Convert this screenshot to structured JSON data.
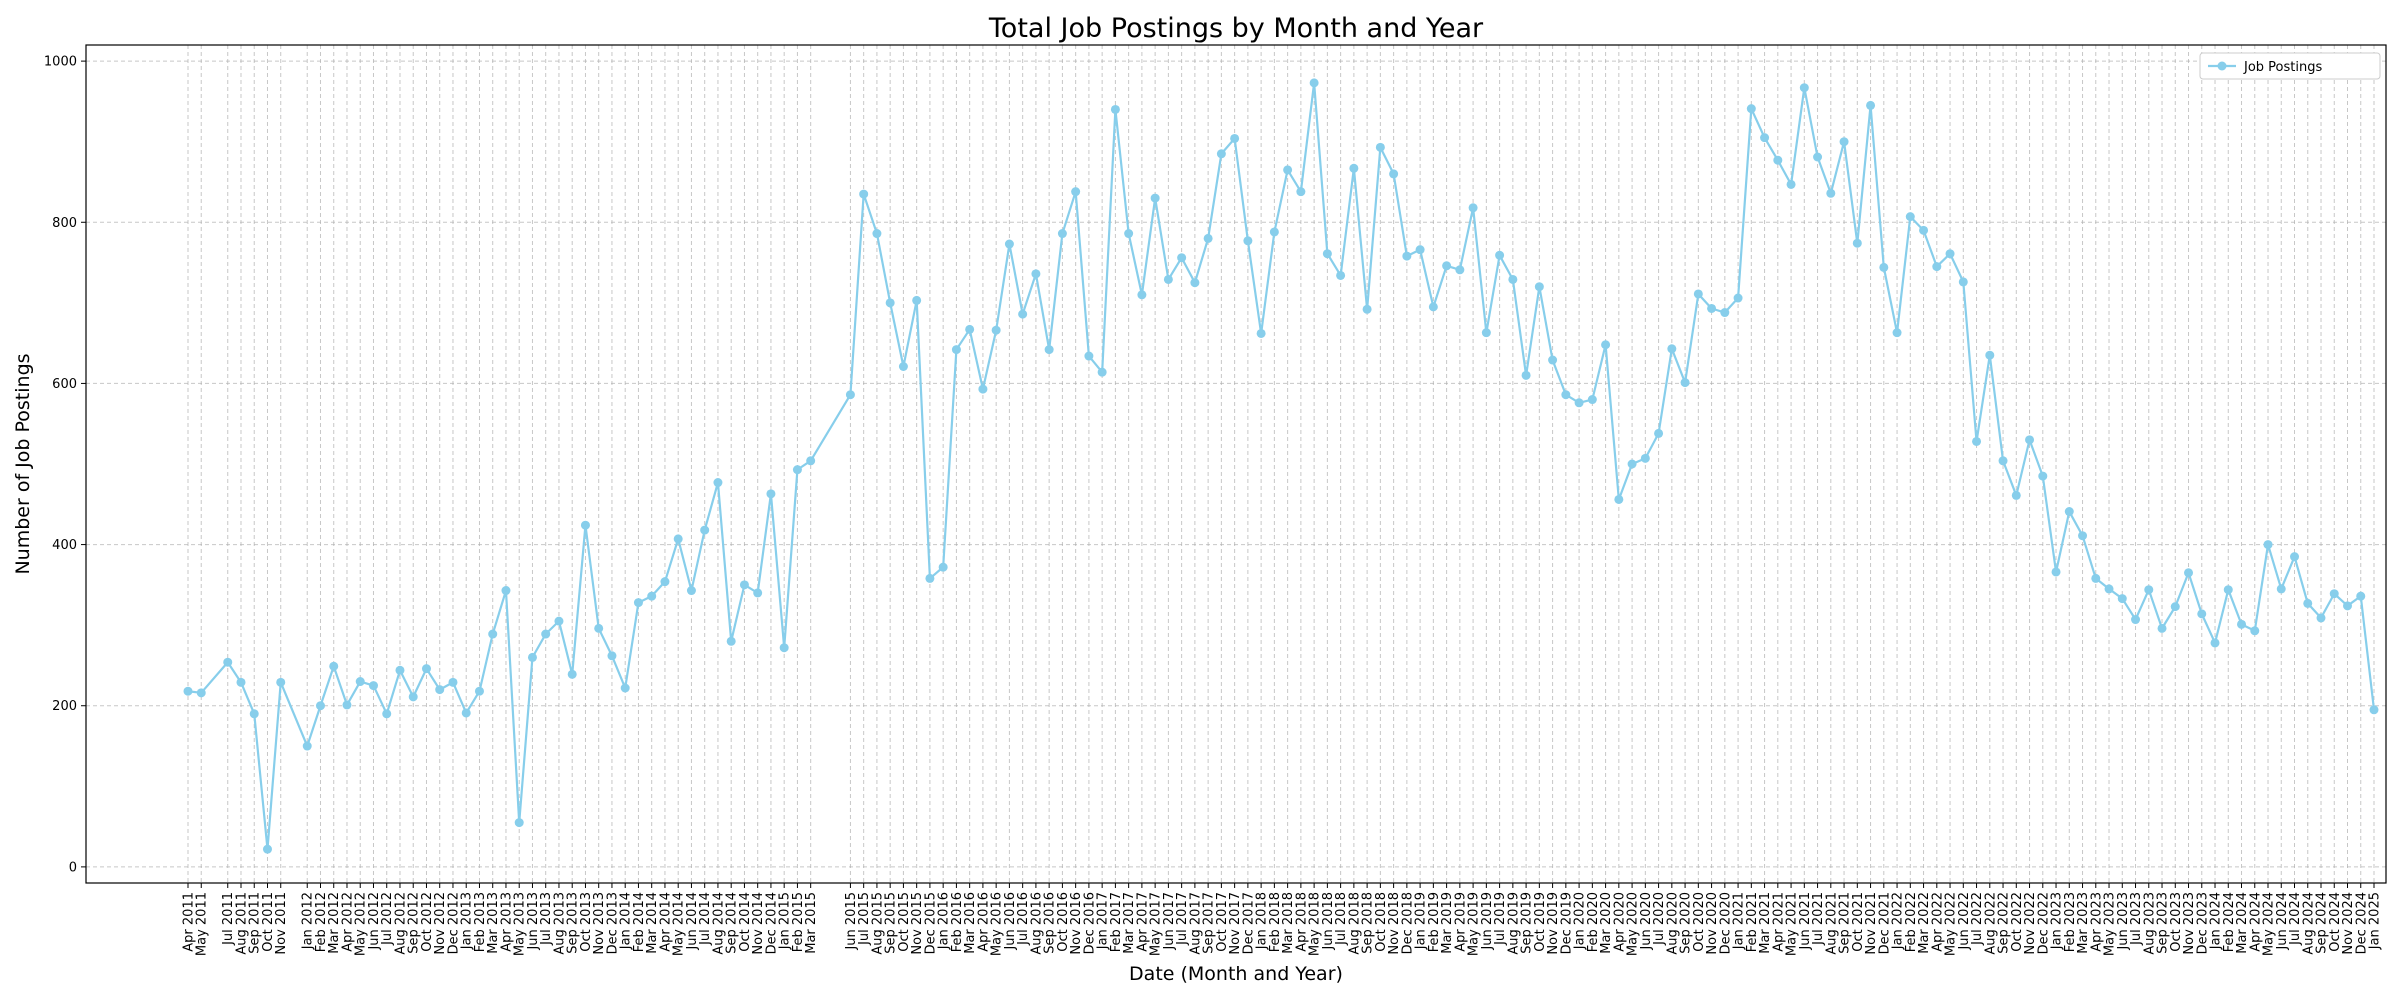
{
  "chart_data": {
    "type": "line",
    "title": "Total Job Postings by Month and Year",
    "xlabel": "Date (Month and Year)",
    "ylabel": "Number of Job Postings",
    "ylim": [
      -20,
      1020
    ],
    "yticks": [
      0,
      200,
      400,
      600,
      800,
      1000
    ],
    "grid": true,
    "legend_position": "top-right",
    "colors": {
      "line": "#87ceeb",
      "axis": "#000000",
      "grid": "#b0b0b0"
    },
    "series": [
      {
        "name": "Job Postings",
        "x": [
          "Apr 2011",
          "May 2011",
          "Jul 2011",
          "Aug 2011",
          "Sep 2011",
          "Oct 2011",
          "Nov 2011",
          "Jan 2012",
          "Feb 2012",
          "Mar 2012",
          "Apr 2012",
          "May 2012",
          "Jun 2012",
          "Jul 2012",
          "Aug 2012",
          "Sep 2012",
          "Oct 2012",
          "Nov 2012",
          "Dec 2012",
          "Jan 2013",
          "Feb 2013",
          "Mar 2013",
          "Apr 2013",
          "May 2013",
          "Jun 2013",
          "Jul 2013",
          "Aug 2013",
          "Sep 2013",
          "Oct 2013",
          "Nov 2013",
          "Dec 2013",
          "Jan 2014",
          "Feb 2014",
          "Mar 2014",
          "Apr 2014",
          "May 2014",
          "Jun 2014",
          "Jul 2014",
          "Aug 2014",
          "Sep 2014",
          "Oct 2014",
          "Nov 2014",
          "Dec 2014",
          "Jan 2015",
          "Feb 2015",
          "Mar 2015",
          "Jun 2015",
          "Jul 2015",
          "Aug 2015",
          "Sep 2015",
          "Oct 2015",
          "Nov 2015",
          "Dec 2015",
          "Jan 2016",
          "Feb 2016",
          "Mar 2016",
          "Apr 2016",
          "May 2016",
          "Jun 2016",
          "Jul 2016",
          "Aug 2016",
          "Sep 2016",
          "Oct 2016",
          "Nov 2016",
          "Dec 2016",
          "Jan 2017",
          "Feb 2017",
          "Mar 2017",
          "Apr 2017",
          "May 2017",
          "Jun 2017",
          "Jul 2017",
          "Aug 2017",
          "Sep 2017",
          "Oct 2017",
          "Nov 2017",
          "Dec 2017",
          "Jan 2018",
          "Feb 2018",
          "Mar 2018",
          "Apr 2018",
          "May 2018",
          "Jun 2018",
          "Jul 2018",
          "Aug 2018",
          "Sep 2018",
          "Oct 2018",
          "Nov 2018",
          "Dec 2018",
          "Jan 2019",
          "Feb 2019",
          "Mar 2019",
          "Apr 2019",
          "May 2019",
          "Jun 2019",
          "Jul 2019",
          "Aug 2019",
          "Sep 2019",
          "Oct 2019",
          "Nov 2019",
          "Dec 2019",
          "Jan 2020",
          "Feb 2020",
          "Mar 2020",
          "Apr 2020",
          "May 2020",
          "Jun 2020",
          "Jul 2020",
          "Aug 2020",
          "Sep 2020",
          "Oct 2020",
          "Nov 2020",
          "Dec 2020",
          "Jan 2021",
          "Feb 2021",
          "Mar 2021",
          "Apr 2021",
          "May 2021",
          "Jun 2021",
          "Jul 2021",
          "Aug 2021",
          "Sep 2021",
          "Oct 2021",
          "Nov 2021",
          "Dec 2021",
          "Jan 2022",
          "Feb 2022",
          "Mar 2022",
          "Apr 2022",
          "May 2022",
          "Jun 2022",
          "Jul 2022",
          "Aug 2022",
          "Sep 2022",
          "Oct 2022",
          "Nov 2022",
          "Dec 2022",
          "Jan 2023",
          "Feb 2023",
          "Mar 2023",
          "Apr 2023",
          "May 2023",
          "Jun 2023",
          "Jul 2023",
          "Aug 2023",
          "Sep 2023",
          "Oct 2023",
          "Nov 2023",
          "Dec 2023",
          "Jan 2024",
          "Feb 2024",
          "Mar 2024",
          "Apr 2024",
          "May 2024",
          "Jun 2024",
          "Jul 2024",
          "Aug 2024",
          "Sep 2024",
          "Oct 2024",
          "Nov 2024",
          "Dec 2024",
          "Jan 2025"
        ],
        "y": [
          218,
          216,
          254,
          229,
          190,
          22,
          229,
          150,
          200,
          249,
          201,
          230,
          225,
          190,
          244,
          211,
          246,
          220,
          229,
          191,
          218,
          289,
          343,
          55,
          260,
          289,
          305,
          239,
          424,
          296,
          262,
          222,
          328,
          336,
          354,
          407,
          343,
          418,
          477,
          280,
          350,
          340,
          463,
          272,
          493,
          504,
          586,
          835,
          786,
          700,
          621,
          703,
          358,
          372,
          642,
          667,
          593,
          666,
          773,
          686,
          736,
          642,
          786,
          838,
          634,
          614,
          940,
          786,
          710,
          830,
          729,
          756,
          725,
          780,
          885,
          904,
          777,
          662,
          788,
          865,
          838,
          973,
          761,
          734,
          867,
          692,
          893,
          860,
          758,
          766,
          695,
          746,
          741,
          818,
          663,
          759,
          729,
          610,
          720,
          629,
          586,
          576,
          580,
          648,
          456,
          500,
          507,
          538,
          643,
          601,
          711,
          693,
          688,
          706,
          941,
          905,
          877,
          847,
          967,
          881,
          836,
          900,
          774,
          945,
          744,
          663,
          807,
          790,
          745,
          761,
          726,
          528,
          635,
          504,
          461,
          530,
          485,
          366,
          441,
          411,
          358,
          345,
          333,
          307,
          344,
          296,
          323,
          365,
          314,
          278,
          344,
          301,
          293,
          400,
          345,
          385,
          327,
          309,
          339,
          324,
          336,
          195
        ]
      }
    ]
  }
}
